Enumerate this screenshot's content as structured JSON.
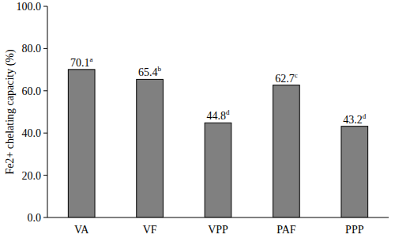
{
  "chart_data": {
    "type": "bar",
    "y_label": "Fe2+ chelating capacity (%)",
    "categories": [
      "VA",
      "VF",
      "VPP",
      "PAF",
      "PPP"
    ],
    "values": [
      70.1,
      65.4,
      44.8,
      62.7,
      43.2
    ],
    "value_labels": [
      "70.1a",
      "65.4b",
      "44.8d",
      "62.7c",
      "43.2d"
    ],
    "data_labels": true,
    "color": "#808080",
    "ylim": [
      0,
      100
    ],
    "yticks": [
      {
        "value": 0,
        "label": "0.0"
      },
      {
        "value": 20,
        "label": "20.0"
      },
      {
        "value": 40,
        "label": "40.0"
      },
      {
        "value": 60,
        "label": "60.0"
      },
      {
        "value": 80,
        "label": "80.0"
      },
      {
        "value": 100,
        "label": "100.0"
      }
    ],
    "grid": false
  }
}
